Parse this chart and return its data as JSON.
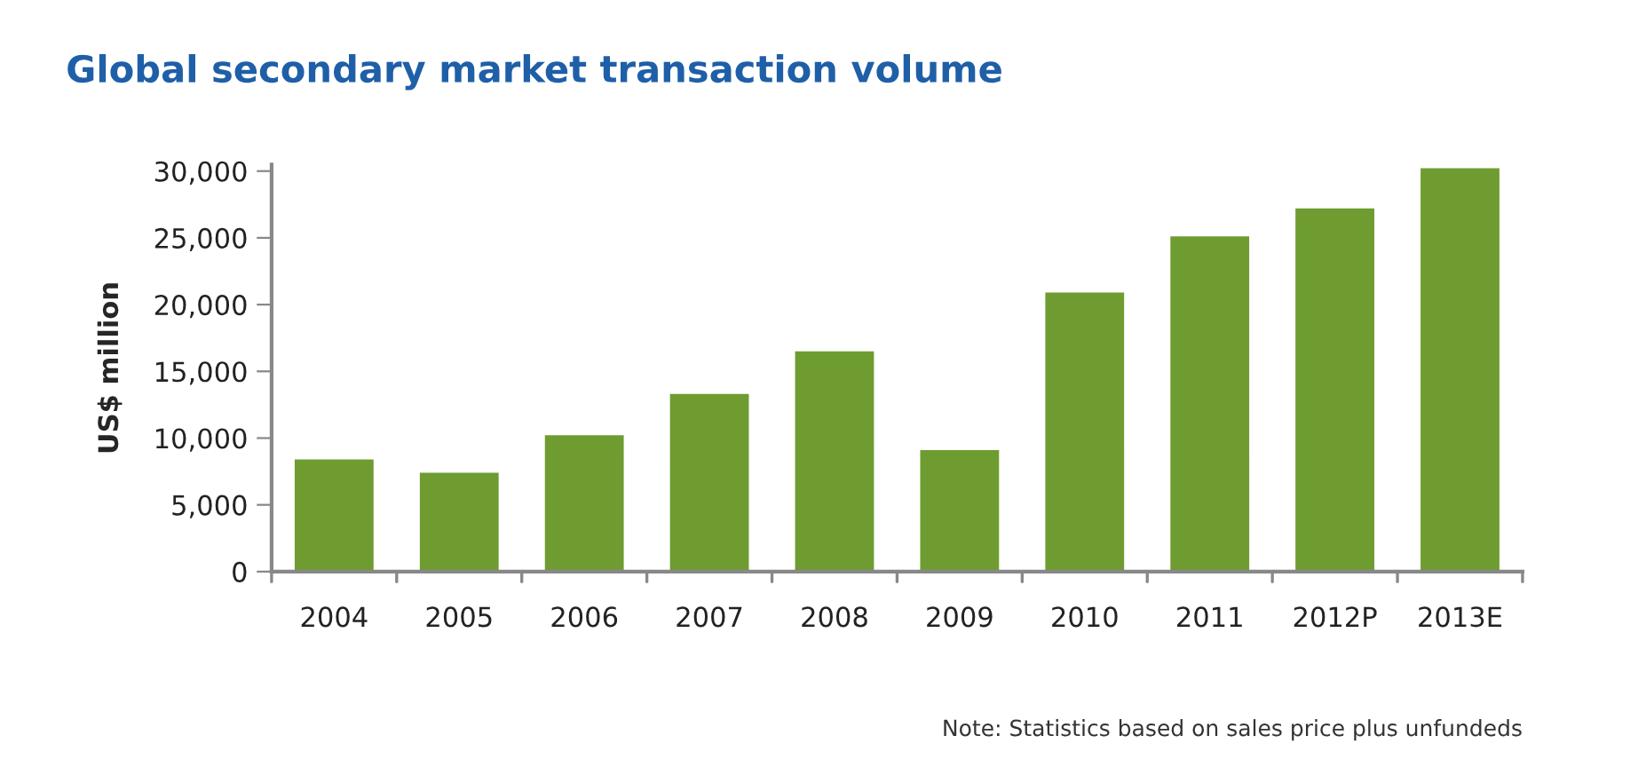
{
  "chart_data": {
    "type": "bar",
    "title": "Global secondary market transaction volume",
    "ylabel": "US$ million",
    "categories": [
      "2004",
      "2005",
      "2006",
      "2007",
      "2008",
      "2009",
      "2010",
      "2011",
      "2012P",
      "2013E"
    ],
    "values": [
      8500,
      7500,
      10300,
      13400,
      16600,
      9200,
      21000,
      25200,
      27300,
      30300
    ],
    "color": "#6e9c31",
    "ylim": [
      0,
      30500
    ],
    "yticks": [
      {
        "value": 0,
        "label": "0"
      },
      {
        "value": 5000,
        "label": "5,000"
      },
      {
        "value": 10000,
        "label": "10,000"
      },
      {
        "value": 15000,
        "label": "15,000"
      },
      {
        "value": 20000,
        "label": "20,000"
      },
      {
        "value": 25000,
        "label": "25,000"
      },
      {
        "value": 30000,
        "label": "30,000"
      }
    ],
    "grid": false,
    "annotations": [
      "Note: Statistics based on sales price plus unfundeds"
    ]
  }
}
